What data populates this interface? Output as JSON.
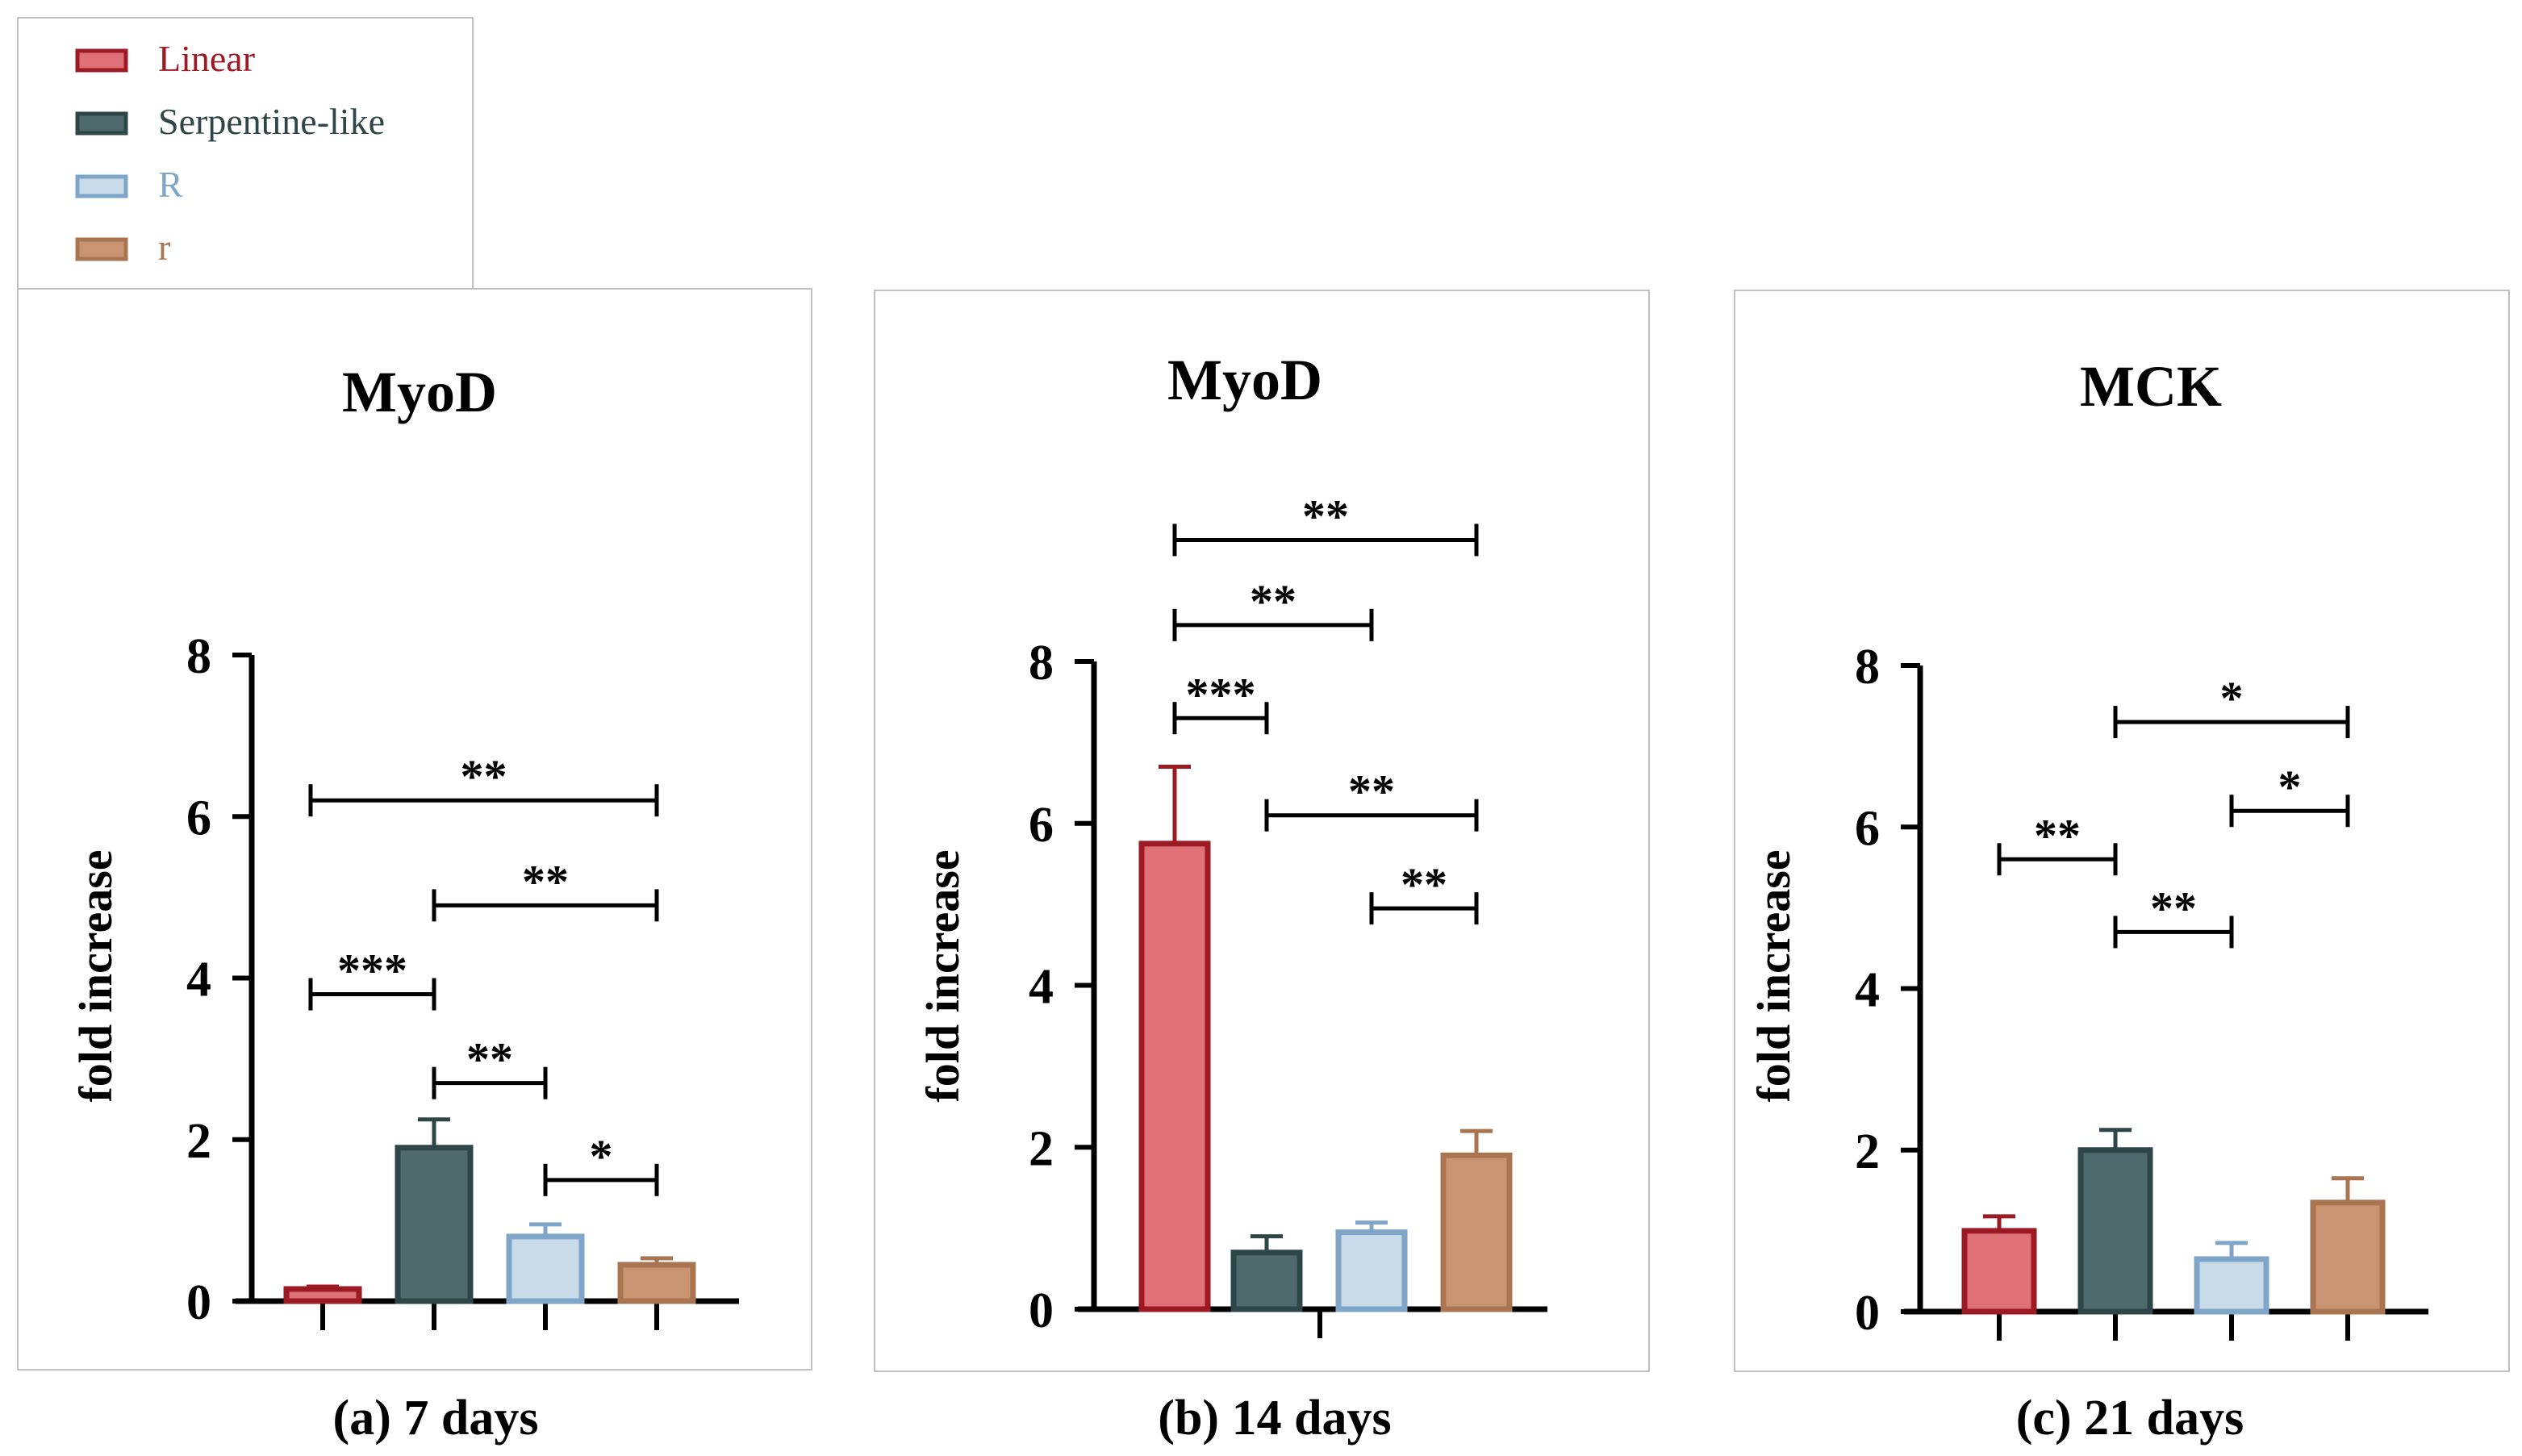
{
  "legend": {
    "items": [
      {
        "label": "Linear",
        "fill": "#e07078",
        "stroke": "#9c1a24",
        "text_color": "#9c1a24"
      },
      {
        "label": "Serpentine-like",
        "fill": "#4e6a6c",
        "stroke": "#2f4648",
        "text_color": "#2f4648"
      },
      {
        "label": "R",
        "fill": "#c9dae8",
        "stroke": "#7fa6c8",
        "text_color": "#7fa6c8"
      },
      {
        "label": "r",
        "fill": "#c99471",
        "stroke": "#a87550",
        "text_color": "#a87550"
      }
    ]
  },
  "chart_data": [
    {
      "type": "bar",
      "title": "MyoD",
      "caption": "(a)   7 days",
      "ylabel": "fold increase",
      "xlabel": "",
      "ylim": [
        0,
        8
      ],
      "yticks": [
        "0",
        "2",
        "4",
        "6",
        "8"
      ],
      "categories": [
        "Linear",
        "Serpentine-like",
        "R",
        "r"
      ],
      "values": [
        0.15,
        1.9,
        0.8,
        0.45
      ],
      "errors": [
        0.03,
        0.35,
        0.15,
        0.08
      ],
      "significance": [
        {
          "from": 0,
          "to": 3,
          "label": "**",
          "y": 6.2
        },
        {
          "from": 1,
          "to": 3,
          "label": "**",
          "y": 4.9
        },
        {
          "from": 0,
          "to": 1,
          "label": "***",
          "y": 3.8
        },
        {
          "from": 1,
          "to": 2,
          "label": "**",
          "y": 2.7
        },
        {
          "from": 2,
          "to": 3,
          "label": "*",
          "y": 1.5
        }
      ]
    },
    {
      "type": "bar",
      "title": "MyoD",
      "caption": "(b)   14 days",
      "ylabel": "fold increase",
      "xlabel": "",
      "ylim": [
        0,
        8
      ],
      "yticks": [
        "0",
        "2",
        "4",
        "6",
        "8"
      ],
      "categories": [
        "Linear",
        "Serpentine-like",
        "R",
        "r"
      ],
      "values": [
        5.75,
        0.7,
        0.95,
        1.9
      ],
      "errors": [
        0.95,
        0.2,
        0.12,
        0.3
      ],
      "significance": [
        {
          "from": 0,
          "to": 3,
          "label": "**",
          "y": 9.5
        },
        {
          "from": 0,
          "to": 2,
          "label": "**",
          "y": 8.45
        },
        {
          "from": 0,
          "to": 1,
          "label": "***",
          "y": 7.3
        },
        {
          "from": 1,
          "to": 3,
          "label": "**",
          "y": 6.1
        },
        {
          "from": 2,
          "to": 3,
          "label": "**",
          "y": 4.95
        }
      ]
    },
    {
      "type": "bar",
      "title": "MCK",
      "caption": "(c)   21 days",
      "ylabel": "fold increase",
      "xlabel": "",
      "ylim": [
        0,
        8
      ],
      "yticks": [
        "0",
        "2",
        "4",
        "6",
        "8"
      ],
      "categories": [
        "Linear",
        "Serpentine-like",
        "R",
        "r"
      ],
      "values": [
        1.0,
        2.0,
        0.65,
        1.35
      ],
      "errors": [
        0.18,
        0.25,
        0.2,
        0.3
      ],
      "significance": [
        {
          "from": 1,
          "to": 3,
          "label": "*",
          "y": 7.3
        },
        {
          "from": 2,
          "to": 3,
          "label": "*",
          "y": 6.2
        },
        {
          "from": 0,
          "to": 1,
          "label": "**",
          "y": 5.6
        },
        {
          "from": 1,
          "to": 2,
          "label": "**",
          "y": 4.7
        }
      ]
    }
  ]
}
